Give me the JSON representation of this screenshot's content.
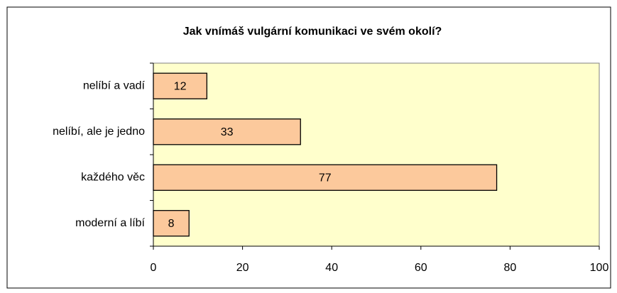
{
  "chart_data": {
    "type": "bar",
    "title": "Jak vnímáš vulgární komunikaci ve svém okolí?",
    "categories": [
      "nelíbí a vadí",
      "nelíbí, ale je jedno",
      "každého věc",
      "moderní a líbí"
    ],
    "values": [
      12,
      33,
      77,
      8
    ],
    "color": "#fcc99c",
    "xlim": [
      0,
      100
    ],
    "xticks": [
      0,
      20,
      40,
      60,
      80,
      100
    ]
  }
}
